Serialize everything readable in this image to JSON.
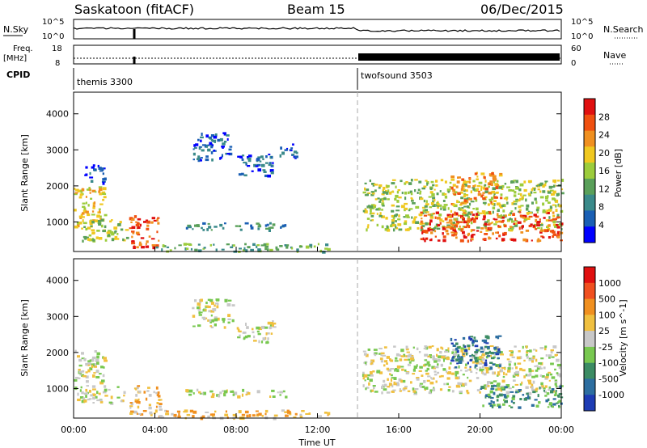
{
  "header": {
    "station": "Saskatoon (fitACF)",
    "beam": "Beam 15",
    "date": "06/Dec/2015"
  },
  "top_panels": {
    "nsky_label": "N.Sky",
    "nsky_ticks": [
      "10^5",
      "10^0"
    ],
    "nsearch_label": "N.Search",
    "nsearch_ticks": [
      "10^5",
      "10^0"
    ],
    "freq_label": "Freq.",
    "freq_unit": "[MHz]",
    "freq_ticks": [
      "18",
      "8"
    ],
    "nave_label": "Nave",
    "nave_ticks": [
      "60",
      "0"
    ],
    "cpid_label": "CPID",
    "programs": [
      {
        "name": "themis 3300",
        "start_hour": 0
      },
      {
        "name": "twofsound 3503",
        "start_hour": 14
      }
    ]
  },
  "time_axis": {
    "label": "Time UT",
    "ticks": [
      "00:00",
      "04:00",
      "08:00",
      "12:00",
      "16:00",
      "20:00",
      "00:00"
    ],
    "range_hours": [
      0,
      24
    ]
  },
  "power_panel": {
    "ylabel": "Slant Range [km]",
    "yticks": [
      "4000",
      "3000",
      "2000",
      "1000"
    ],
    "colorbar_label": "Power [dB]",
    "colorbar_ticks": [
      "28",
      "24",
      "20",
      "16",
      "12",
      "8",
      "4"
    ],
    "colors": [
      "#0000ff",
      "#1a5fb4",
      "#3a8a8a",
      "#5aa05a",
      "#9ccc3c",
      "#f0c820",
      "#f09020",
      "#f05010",
      "#e01010"
    ]
  },
  "velocity_panel": {
    "ylabel": "Slant Range [km]",
    "yticks": [
      "4000",
      "3000",
      "2000",
      "1000"
    ],
    "colorbar_label": "Velocity [m s^-1]",
    "colorbar_ticks": [
      "1000",
      "500",
      "100",
      "25",
      "-25",
      "-100",
      "-500",
      "-1000"
    ],
    "colors": [
      "#1e3cb4",
      "#2d6ea0",
      "#3c8c64",
      "#78c850",
      "#c8c8c8",
      "#f0c040",
      "#f09020",
      "#f05020",
      "#e01010"
    ]
  },
  "chart_data": {
    "type": "heatmap",
    "title": "Saskatoon (fitACF) Beam 15 06/Dec/2015",
    "xlabel": "Time UT",
    "ylabel": "Slant Range [km]",
    "xlim_hours": [
      0,
      24
    ],
    "ylim_km": [
      180,
      4600
    ],
    "grid": false,
    "vertical_marker_hour": 14,
    "power_regions": [
      {
        "t0": 0.0,
        "t1": 1.5,
        "r0": 900,
        "r1": 2000,
        "level": 5
      },
      {
        "t0": 0.0,
        "t1": 2.6,
        "r0": 500,
        "r1": 1100,
        "level": 4
      },
      {
        "t0": 0.5,
        "t1": 1.5,
        "r0": 2100,
        "r1": 2600,
        "level": 1
      },
      {
        "t0": 2.7,
        "t1": 4.2,
        "r0": 300,
        "r1": 1200,
        "level": 7
      },
      {
        "t0": 4.0,
        "t1": 12.5,
        "r0": 200,
        "r1": 420,
        "level": 3
      },
      {
        "t0": 5.5,
        "t1": 10.5,
        "r0": 800,
        "r1": 1000,
        "level": 2
      },
      {
        "t0": 5.8,
        "t1": 7.8,
        "r0": 2700,
        "r1": 3500,
        "level": 1
      },
      {
        "t0": 8.0,
        "t1": 9.8,
        "r0": 2300,
        "r1": 2900,
        "level": 1
      },
      {
        "t0": 10.0,
        "t1": 11.0,
        "r0": 2800,
        "r1": 3200,
        "level": 1
      },
      {
        "t0": 14.2,
        "t1": 24.0,
        "r0": 800,
        "r1": 2200,
        "level": 4
      },
      {
        "t0": 17.0,
        "t1": 24.0,
        "r0": 500,
        "r1": 1300,
        "level": 7
      },
      {
        "t0": 18.5,
        "t1": 21.0,
        "r0": 1500,
        "r1": 2400,
        "level": 6
      }
    ],
    "velocity_regions": [
      {
        "t0": 0.0,
        "t1": 2.6,
        "r0": 600,
        "r1": 1100,
        "level": 4
      },
      {
        "t0": 0.0,
        "t1": 1.5,
        "r0": 1200,
        "r1": 2100,
        "level": 4
      },
      {
        "t0": 2.7,
        "t1": 4.2,
        "r0": 300,
        "r1": 1100,
        "level": 5
      },
      {
        "t0": 4.0,
        "t1": 12.5,
        "r0": 200,
        "r1": 420,
        "level": 5
      },
      {
        "t0": 5.5,
        "t1": 10.5,
        "r0": 800,
        "r1": 1000,
        "level": 4
      },
      {
        "t0": 5.8,
        "t1": 7.8,
        "r0": 2700,
        "r1": 3500,
        "level": 4
      },
      {
        "t0": 8.0,
        "t1": 9.8,
        "r0": 2300,
        "r1": 2900,
        "level": 4
      },
      {
        "t0": 14.2,
        "t1": 24.0,
        "r0": 900,
        "r1": 2200,
        "level": 4
      },
      {
        "t0": 18.5,
        "t1": 21.0,
        "r0": 1600,
        "r1": 2500,
        "level": 1
      },
      {
        "t0": 20.0,
        "t1": 24.0,
        "r0": 500,
        "r1": 1100,
        "level": 2
      }
    ]
  }
}
